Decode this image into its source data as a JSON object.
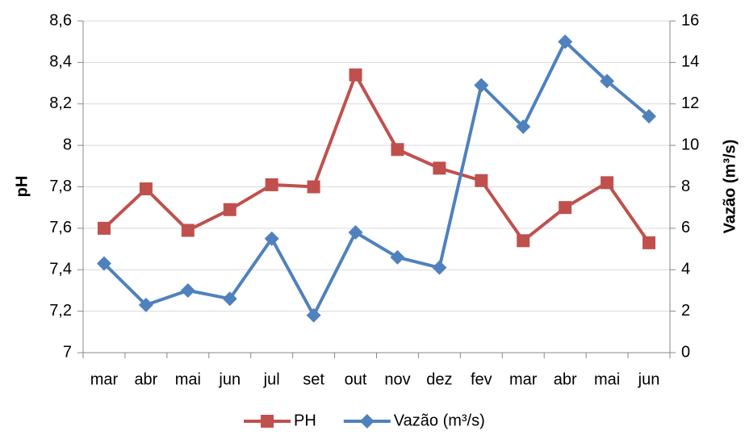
{
  "chart_data": {
    "type": "line",
    "categories": [
      "mar",
      "abr",
      "mai",
      "jun",
      "jul",
      "set",
      "out",
      "nov",
      "dez",
      "fev",
      "mar",
      "abr",
      "mai",
      "jun"
    ],
    "series": [
      {
        "name": "PH",
        "color": "#c0504d",
        "marker": "square",
        "values": [
          7.6,
          7.79,
          7.59,
          7.69,
          7.81,
          7.8,
          8.34,
          7.98,
          7.89,
          7.83,
          7.54,
          7.7,
          7.82,
          7.53
        ]
      },
      {
        "name": "Vazão (m³/s)",
        "color": "#4f81bd",
        "marker": "diamond",
        "axis": "y2",
        "values": [
          4.3,
          2.3,
          3.0,
          2.6,
          5.5,
          1.8,
          5.8,
          4.6,
          4.1,
          12.9,
          10.9,
          15.0,
          13.1,
          11.4
        ]
      }
    ],
    "y_label": "pH",
    "y2_label": "Vazão  (m³/s)",
    "ylim": [
      7,
      8.6
    ],
    "yticks": [
      7,
      {
        "value": 7.2,
        "label": "7,2"
      },
      {
        "value": 7.4,
        "label": "7,4"
      },
      {
        "value": 7.6,
        "label": "7,6"
      },
      {
        "value": 7.8,
        "label": "7,8"
      },
      8,
      {
        "value": 8.2,
        "label": "8,2"
      },
      {
        "value": 8.4,
        "label": "8,4"
      },
      {
        "value": 8.6,
        "label": "8,6"
      }
    ],
    "y2lim": [
      0,
      16
    ],
    "y2ticks": [
      0,
      2,
      4,
      6,
      8,
      10,
      12,
      14,
      16
    ],
    "grid": true,
    "legend": "bottom"
  }
}
